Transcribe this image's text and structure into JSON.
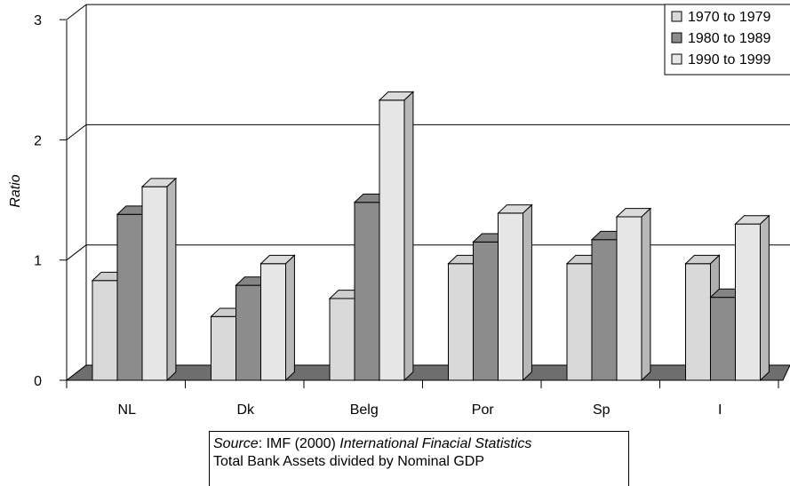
{
  "chart_data": {
    "type": "bar",
    "style": "3d-clustered",
    "ylabel": "Ratio",
    "ylim": [
      0,
      3
    ],
    "yticks": [
      "0",
      "1",
      "2",
      "3"
    ],
    "grid": true,
    "legend_position": "top-right",
    "categories": [
      "NL",
      "Dk",
      "Belg",
      "Por",
      "Sp",
      "I"
    ],
    "series": [
      {
        "name": "1970 to 1979",
        "values": [
          0.83,
          0.53,
          0.68,
          0.97,
          0.97,
          0.97
        ],
        "color": "#d9d9d9"
      },
      {
        "name": "1980 to 1989",
        "values": [
          1.38,
          0.79,
          1.48,
          1.15,
          1.17,
          0.69
        ],
        "color": "#8c8c8c"
      },
      {
        "name": "1990 to 1999",
        "values": [
          1.61,
          0.97,
          2.33,
          1.39,
          1.36,
          1.3
        ],
        "color": "#e6e6e6"
      }
    ]
  },
  "source_note": {
    "source_label": "Source",
    "source_rest_plain": ": IMF (2000) ",
    "source_title": "International Finacial Statistics",
    "line2": "Total Bank Assets divided by Nominal GDP"
  }
}
